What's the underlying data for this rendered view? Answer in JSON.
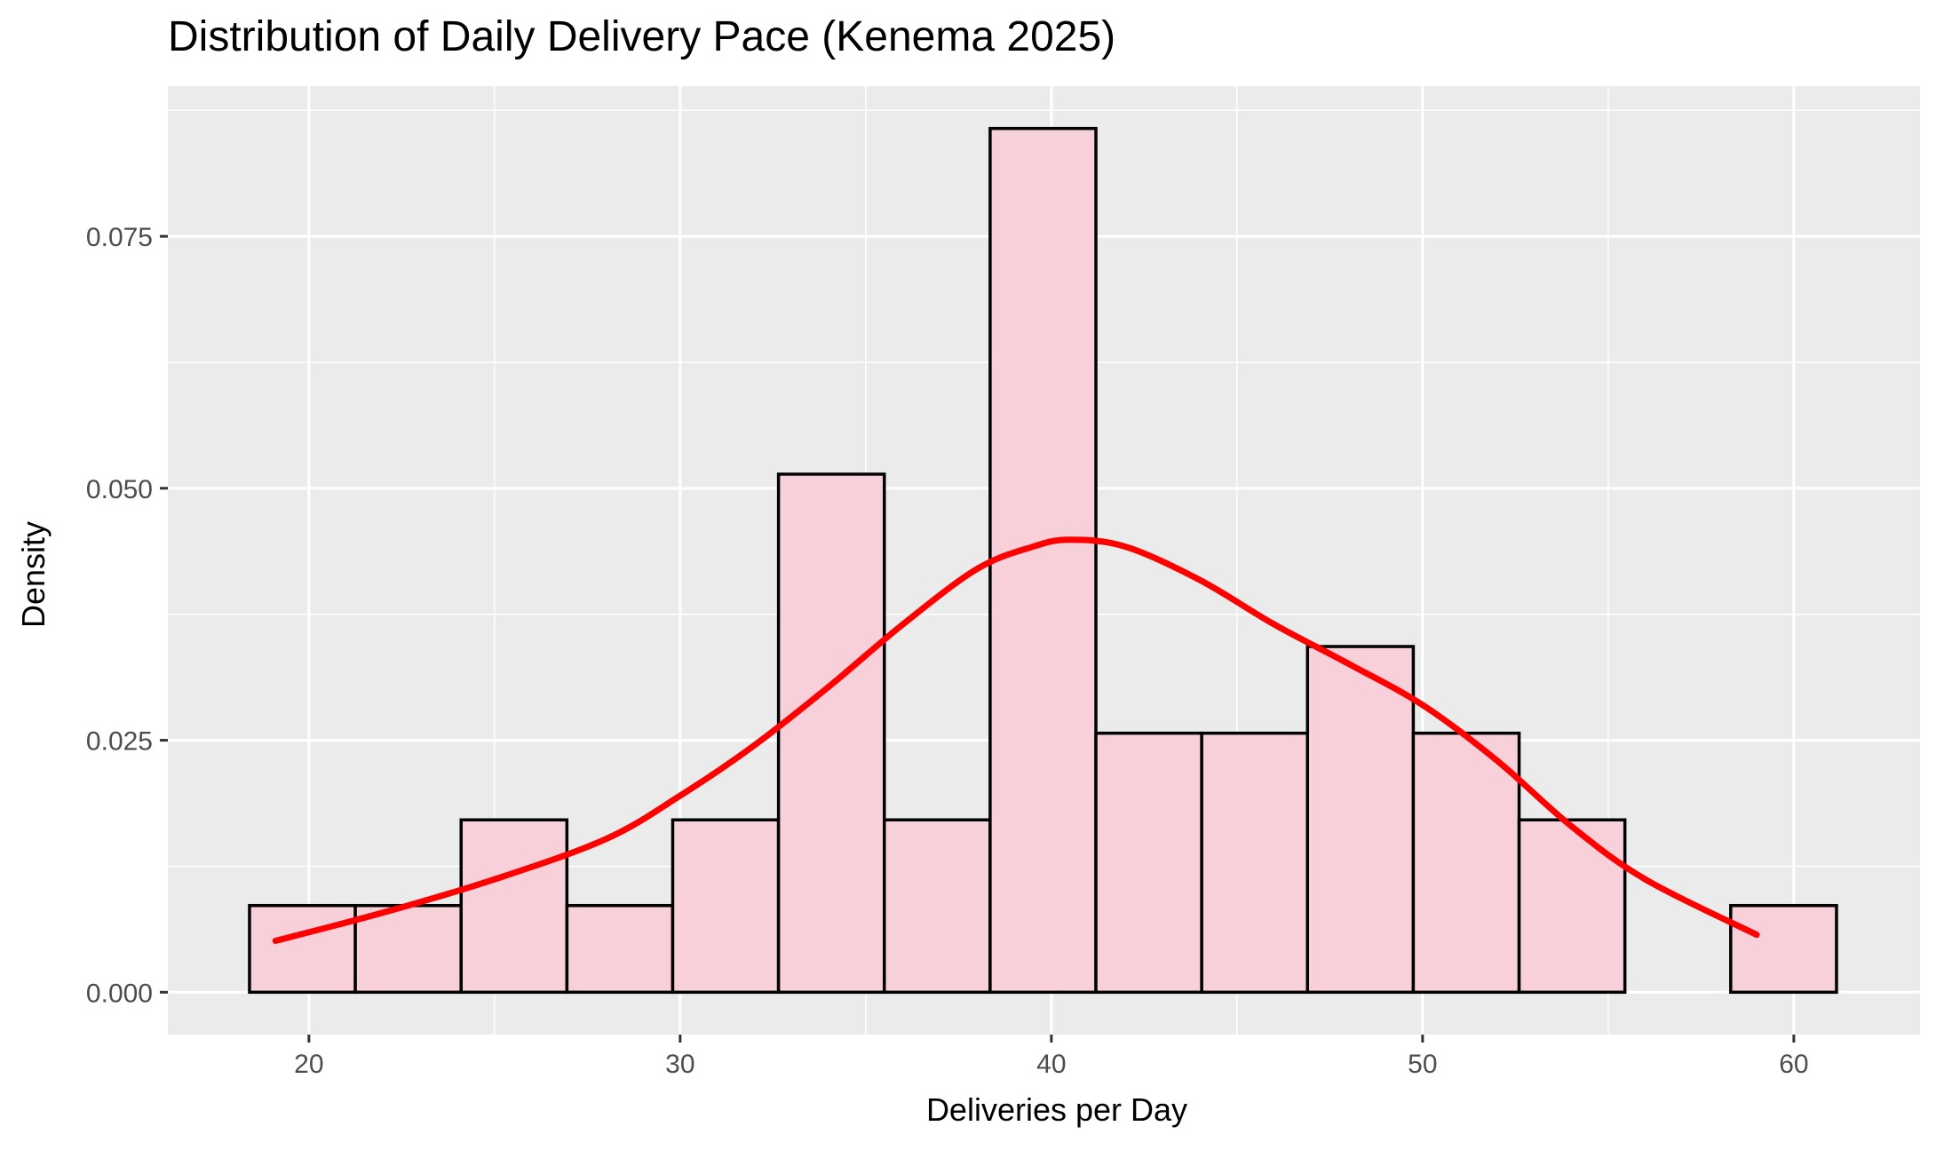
{
  "chart_data": {
    "type": "bar",
    "subtype": "histogram with density curve",
    "title": "Distribution of Daily Delivery Pace (Kenema 2025)",
    "xlabel": "Deliveries per Day",
    "ylabel": "Density",
    "xlim": [
      16.2,
      63.4
    ],
    "ylim": [
      -0.0042,
      0.0899
    ],
    "x_ticks": [
      20,
      30,
      40,
      50,
      60
    ],
    "x_tick_labels": [
      "20",
      "30",
      "40",
      "50",
      "60"
    ],
    "y_ticks": [
      0.0,
      0.025,
      0.05,
      0.075
    ],
    "y_tick_labels": [
      "0.000",
      "0.025",
      "0.050",
      "0.075"
    ],
    "grid": true,
    "bins": [
      {
        "x0": 18.4,
        "x1": 21.25,
        "density": 0.0086
      },
      {
        "x0": 21.25,
        "x1": 24.1,
        "density": 0.0086
      },
      {
        "x0": 24.1,
        "x1": 26.95,
        "density": 0.0171
      },
      {
        "x0": 26.95,
        "x1": 29.8,
        "density": 0.0086
      },
      {
        "x0": 29.8,
        "x1": 32.65,
        "density": 0.0171
      },
      {
        "x0": 32.65,
        "x1": 35.5,
        "density": 0.0514
      },
      {
        "x0": 35.5,
        "x1": 38.35,
        "density": 0.0171
      },
      {
        "x0": 38.35,
        "x1": 41.2,
        "density": 0.0857
      },
      {
        "x0": 41.2,
        "x1": 44.05,
        "density": 0.0257
      },
      {
        "x0": 44.05,
        "x1": 46.9,
        "density": 0.0257
      },
      {
        "x0": 46.9,
        "x1": 49.75,
        "density": 0.0343
      },
      {
        "x0": 49.75,
        "x1": 52.6,
        "density": 0.0257
      },
      {
        "x0": 52.6,
        "x1": 55.45,
        "density": 0.0171
      },
      {
        "x0": 55.45,
        "x1": 58.3,
        "density": 0.0
      },
      {
        "x0": 58.3,
        "x1": 61.15,
        "density": 0.0086
      }
    ],
    "density_curve": {
      "x": [
        19.1,
        22.0,
        25.0,
        28.0,
        30.0,
        32.0,
        34.0,
        36.0,
        38.0,
        39.5,
        40.5,
        42.0,
        44.0,
        46.0,
        48.0,
        50.0,
        52.0,
        54.0,
        56.0,
        59.0
      ],
      "y": [
        0.0051,
        0.0079,
        0.0112,
        0.0152,
        0.0195,
        0.0245,
        0.0303,
        0.0365,
        0.042,
        0.0442,
        0.0449,
        0.0442,
        0.0409,
        0.0365,
        0.0326,
        0.0285,
        0.023,
        0.0165,
        0.0112,
        0.0057
      ]
    },
    "colors": {
      "panel_background": "#ebebeb",
      "grid": "#ffffff",
      "bar_fill": "#f8d0d9",
      "bar_stroke": "#000000",
      "curve": "#ff0000"
    }
  }
}
